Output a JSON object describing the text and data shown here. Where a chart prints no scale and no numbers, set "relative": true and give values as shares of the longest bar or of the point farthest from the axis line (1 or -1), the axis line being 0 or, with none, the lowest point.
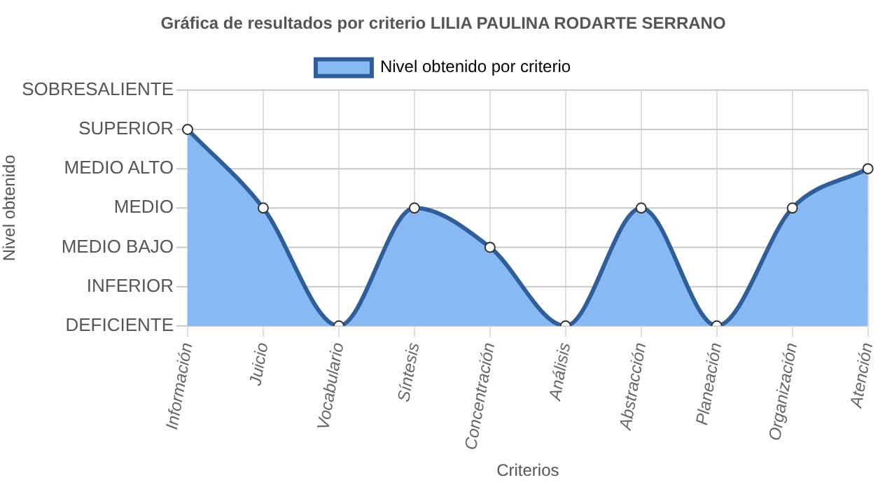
{
  "chart_data": {
    "type": "area",
    "title": "Gráfica de resultados por criterio LILIA PAULINA RODARTE SERRANO",
    "xlabel": "Criterios",
    "categories": [
      "Información",
      "Juicio",
      "Vocabulario",
      "Síntesis",
      "Concentración",
      "Análisis",
      "Abstracción",
      "Planeación",
      "Organización",
      "Atención"
    ],
    "relative": true,
    "annotations": [
      "SOBRESALIENTE",
      "SUPERIOR",
      "MEDIO ALTO",
      "MEDIO",
      "MEDIO BAJO",
      "INFERIOR",
      "DEFICIENTE",
      "Nivel obtenido"
    ],
    "series": [
      {
        "name": "Nivel obtenido por criterio",
        "color": "#2f5e99",
        "values": [
          1,
          0.6,
          0,
          0.6,
          0.4,
          0,
          0.6,
          0,
          0.6,
          0.8
        ]
      }
    ],
    "grid": true,
    "legend": "top",
    "marker": "circle",
    "line_style": "solid"
  }
}
